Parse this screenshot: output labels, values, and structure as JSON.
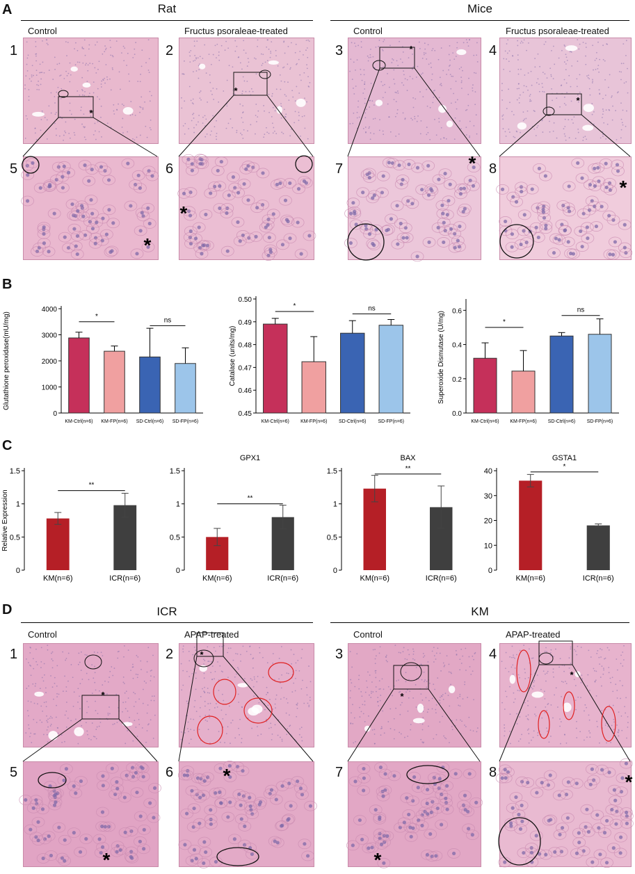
{
  "colors": {
    "tissue_base": "#e7b5cc",
    "tissue_light": "#efcadb",
    "tissue_line": "#c98ab0",
    "nucleus": "#7f6aa8",
    "km_ctrl_bar": "#c5305a",
    "km_fp_bar": "#f0a0a0",
    "sd_ctrl_bar": "#3a64b3",
    "sd_fp_bar": "#9cc5ea",
    "km_bar_c": "#b51f26",
    "icr_bar_c": "#3f3f3f",
    "vessel_red": "#e02020"
  },
  "panel_a": {
    "letter": "A",
    "groups": [
      {
        "title": "Rat",
        "sub": [
          "Control",
          "Fructus psoraleae-treated"
        ]
      },
      {
        "title": "Mice",
        "sub": [
          "Control",
          "Fructus psoraleae-treated"
        ]
      }
    ],
    "numbers": [
      "1",
      "2",
      "3",
      "4",
      "5",
      "6",
      "7",
      "8"
    ],
    "star": "*"
  },
  "panel_b": {
    "letter": "B"
  },
  "panel_c": {
    "letter": "C"
  },
  "panel_d": {
    "letter": "D",
    "groups": [
      {
        "title": "ICR",
        "sub": [
          "Control",
          "APAP-treated"
        ]
      },
      {
        "title": "KM",
        "sub": [
          "Control",
          "APAP-treated"
        ]
      }
    ],
    "numbers": [
      "1",
      "2",
      "3",
      "4",
      "5",
      "6",
      "7",
      "8"
    ],
    "star": "*"
  },
  "chart_data": [
    {
      "type": "bar",
      "panel": "B",
      "ylabel": "Glutathione peroxidase(mU/mg)",
      "categories": [
        "KM-Ctrl(n=6)",
        "KM-FP(n=6)",
        "SD-Ctrl(n=6)",
        "SD-FP(n=6)"
      ],
      "values": [
        2880,
        2370,
        2150,
        1900
      ],
      "errors": [
        220,
        200,
        1100,
        600
      ],
      "ylim": [
        0,
        4000
      ],
      "yticks": [
        "0",
        "1000",
        "2000",
        "3000",
        "4000"
      ],
      "significance": [
        {
          "between": [
            0,
            1
          ],
          "label": "*",
          "y": 3500
        },
        {
          "between": [
            2,
            3
          ],
          "label": "ns",
          "y": 3350
        }
      ]
    },
    {
      "type": "bar",
      "panel": "B",
      "ylabel": "Catalase (units/mg)",
      "categories": [
        "KM-Ctrl(n=6)",
        "KM-FP(n=6)",
        "SD-Ctrl(n=6)",
        "SD-FP(n=6)"
      ],
      "values": [
        0.489,
        0.4725,
        0.485,
        0.4885
      ],
      "errors": [
        0.0025,
        0.011,
        0.0055,
        0.0025
      ],
      "ylim": [
        0.45,
        0.5
      ],
      "yticks": [
        "0.45",
        "0.46",
        "0.47",
        "0.48",
        "0.49",
        "0.50"
      ],
      "significance": [
        {
          "between": [
            0,
            1
          ],
          "label": "*",
          "y": 0.4945
        },
        {
          "between": [
            2,
            3
          ],
          "label": "ns",
          "y": 0.4935
        }
      ]
    },
    {
      "type": "bar",
      "panel": "B",
      "ylabel": "Superoxide Dismutase (U/mg)",
      "categories": [
        "KM-Ctrl(n=6)",
        "KM-FP(n=6)",
        "SD-Ctrl(n=6)",
        "SD-FP(n=6)"
      ],
      "values": [
        0.32,
        0.245,
        0.45,
        0.46
      ],
      "errors": [
        0.09,
        0.12,
        0.02,
        0.09
      ],
      "ylim": [
        0,
        0.65
      ],
      "yticks": [
        "0.0",
        "0.2",
        "0.4",
        "0.6"
      ],
      "significance": [
        {
          "between": [
            0,
            1
          ],
          "label": "*",
          "y": 0.5
        },
        {
          "between": [
            2,
            3
          ],
          "label": "ns",
          "y": 0.57
        }
      ]
    },
    {
      "type": "bar",
      "panel": "C",
      "title": "",
      "ylabel": "Relative Expression",
      "categories": [
        "KM(n=6)",
        "ICR(n=6)"
      ],
      "values": [
        0.78,
        0.98
      ],
      "errors": [
        0.09,
        0.18
      ],
      "ylim": [
        0,
        1.5
      ],
      "yticks": [
        "0",
        "0.5",
        "1",
        "1.5"
      ],
      "significance": [
        {
          "between": [
            0,
            1
          ],
          "label": "**",
          "y": 1.2
        }
      ]
    },
    {
      "type": "bar",
      "panel": "C",
      "title": "GPX1",
      "ylabel": "",
      "categories": [
        "KM(n=6)",
        "ICR(n=6)"
      ],
      "values": [
        0.5,
        0.8
      ],
      "errors": [
        0.13,
        0.18
      ],
      "ylim": [
        0,
        1.5
      ],
      "yticks": [
        "0",
        "0.5",
        "1",
        "1.5"
      ],
      "significance": [
        {
          "between": [
            0,
            1
          ],
          "label": "**",
          "y": 1.0
        }
      ]
    },
    {
      "type": "bar",
      "panel": "C",
      "title": "BAX",
      "ylabel": "",
      "categories": [
        "KM(n=6)",
        "ICR(n=6)"
      ],
      "values": [
        1.23,
        0.95
      ],
      "errors": [
        0.2,
        0.32
      ],
      "ylim": [
        0,
        1.5
      ],
      "yticks": [
        "0",
        "0.5",
        "1",
        "1.5"
      ],
      "significance": [
        {
          "between": [
            0,
            1
          ],
          "label": "**",
          "y": 1.45
        }
      ]
    },
    {
      "type": "bar",
      "panel": "C",
      "title": "GSTA1",
      "ylabel": "",
      "categories": [
        "KM(n=6)",
        "ICR(n=6)"
      ],
      "values": [
        36,
        18
      ],
      "errors": [
        2.5,
        0.6
      ],
      "ylim": [
        0,
        40
      ],
      "yticks": [
        "0",
        "10",
        "20",
        "30",
        "40"
      ],
      "significance": [
        {
          "between": [
            0,
            1
          ],
          "label": "*",
          "y": 39.5
        }
      ]
    }
  ]
}
